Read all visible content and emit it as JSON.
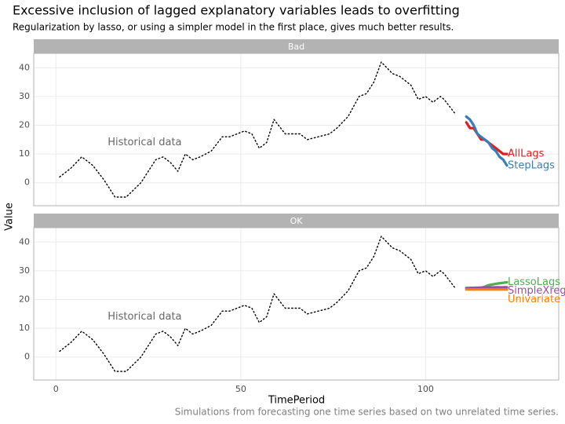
{
  "chart_data": {
    "type": "line",
    "title": "Excessive inclusion of lagged explanatory variables leads to overfitting",
    "subtitle": "Regularization by lasso, or using a simpler model in the first place, gives much better results.",
    "x_label": "TimePeriod",
    "y_label": "Value",
    "caption": "Simulations from forecasting one time series based on two unrelated time series.",
    "xlim": [
      -6,
      136
    ],
    "xticks": [
      0,
      50,
      100
    ],
    "ylim": [
      -8,
      45
    ],
    "yticks": [
      0,
      10,
      20,
      30,
      40
    ],
    "grid": true,
    "panels": [
      {
        "strip": "Bad",
        "series": [
          {
            "name": "Historical data",
            "color": "#000000",
            "style": "dotted",
            "x": [
              1,
              4,
              7,
              9,
              10,
              13,
              16,
              19,
              23,
              27,
              29,
              31,
              33,
              35,
              37,
              39,
              42,
              45,
              47,
              49,
              51,
              53,
              55,
              57,
              59,
              62,
              64,
              66,
              68,
              71,
              74,
              76,
              79,
              82,
              84,
              86,
              88,
              91,
              93,
              96,
              98,
              100,
              102,
              104,
              105,
              108
            ],
            "values": [
              2,
              5,
              9,
              7,
              6,
              1,
              -5,
              -5,
              0,
              8,
              9,
              7,
              4,
              10,
              8,
              9,
              11,
              16,
              16,
              17,
              18,
              17,
              12,
              14,
              22,
              17,
              17,
              17,
              15,
              16,
              17,
              19,
              23,
              30,
              31,
              35,
              42,
              38,
              37,
              34,
              29,
              30,
              28,
              30,
              29,
              24
            ]
          },
          {
            "name": "AllLags",
            "color": "#e41a1c",
            "style": "solid",
            "x": [
              111,
              112,
              113,
              114,
              115,
              116,
              117,
              118,
              119,
              120,
              121,
              122
            ],
            "values": [
              21,
              19,
              19,
              17,
              15,
              15,
              14,
              13,
              12,
              11,
              10,
              10
            ]
          },
          {
            "name": "StepLags",
            "color": "#377eb8",
            "style": "solid",
            "x": [
              111,
              112,
              113,
              114,
              115,
              116,
              117,
              118,
              119,
              120,
              121,
              122
            ],
            "values": [
              23,
              22,
              20,
              17,
              16,
              15,
              14,
              12,
              11,
              9,
              8,
              6
            ]
          }
        ]
      },
      {
        "strip": "OK",
        "series": [
          {
            "name": "Historical data",
            "color": "#000000",
            "style": "dotted",
            "x": [
              1,
              4,
              7,
              9,
              10,
              13,
              16,
              19,
              23,
              27,
              29,
              31,
              33,
              35,
              37,
              39,
              42,
              45,
              47,
              49,
              51,
              53,
              55,
              57,
              59,
              62,
              64,
              66,
              68,
              71,
              74,
              76,
              79,
              82,
              84,
              86,
              88,
              91,
              93,
              96,
              98,
              100,
              102,
              104,
              105,
              108
            ],
            "values": [
              2,
              5,
              9,
              7,
              6,
              1,
              -5,
              -5,
              0,
              8,
              9,
              7,
              4,
              10,
              8,
              9,
              11,
              16,
              16,
              17,
              18,
              17,
              12,
              14,
              22,
              17,
              17,
              17,
              15,
              16,
              17,
              19,
              23,
              30,
              31,
              35,
              42,
              38,
              37,
              34,
              29,
              30,
              28,
              30,
              29,
              24
            ]
          },
          {
            "name": "LassoLags",
            "color": "#4daf4a",
            "style": "solid",
            "x": [
              111,
              113,
              115,
              117,
              119,
              122
            ],
            "values": [
              24,
              23.5,
              24,
              25,
              25.5,
              26
            ]
          },
          {
            "name": "SimpleXreg",
            "color": "#984ea3",
            "style": "solid",
            "x": [
              111,
              116,
              122
            ],
            "values": [
              24,
              24.2,
              24.3
            ]
          },
          {
            "name": "Univariate",
            "color": "#ff7f00",
            "style": "solid",
            "x": [
              111,
              116,
              122
            ],
            "values": [
              23.5,
              23.5,
              23.5
            ]
          }
        ]
      }
    ]
  }
}
